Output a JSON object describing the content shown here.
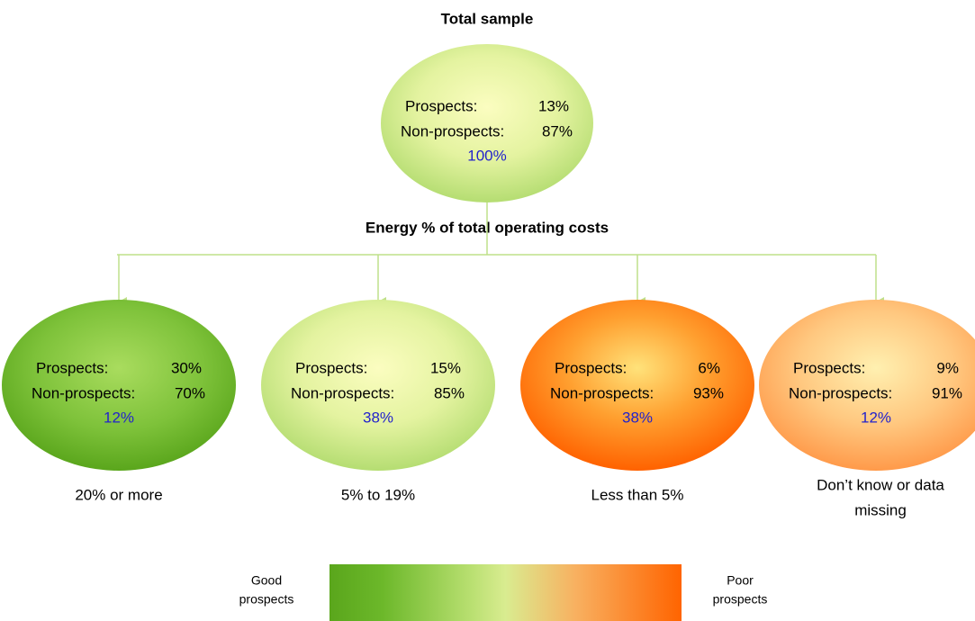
{
  "title": "Total sample",
  "root": {
    "prospects_label": "Prospects:",
    "prospects": "13%",
    "non_prospects_label": "Non-prospects:",
    "non_prospects": "87%",
    "share": "100%"
  },
  "split_label": "Energy % of total operating costs",
  "nodes": [
    {
      "prospects_label": "Prospects:",
      "prospects": "30%",
      "non_prospects_label": "Non-prospects:",
      "non_prospects": "70%",
      "share": "12%",
      "label": [
        "20% or more"
      ]
    },
    {
      "prospects_label": "Prospects:",
      "prospects": "15%",
      "non_prospects_label": "Non-prospects:",
      "non_prospects": "85%",
      "share": "38%",
      "label": [
        "5% to 19%"
      ]
    },
    {
      "prospects_label": "Prospects:",
      "prospects": "6%",
      "non_prospects_label": "Non-prospects:",
      "non_prospects": "93%",
      "share": "38%",
      "label": [
        "Less than 5%"
      ]
    },
    {
      "prospects_label": "Prospects:",
      "prospects": "9%",
      "non_prospects_label": "Non-prospects:",
      "non_prospects": "91%",
      "share": "12%",
      "label": [
        "Don’t know or data",
        "missing"
      ]
    }
  ],
  "legend": {
    "good": [
      "Good",
      "prospects"
    ],
    "poor": [
      "Poor",
      "prospects"
    ]
  }
}
